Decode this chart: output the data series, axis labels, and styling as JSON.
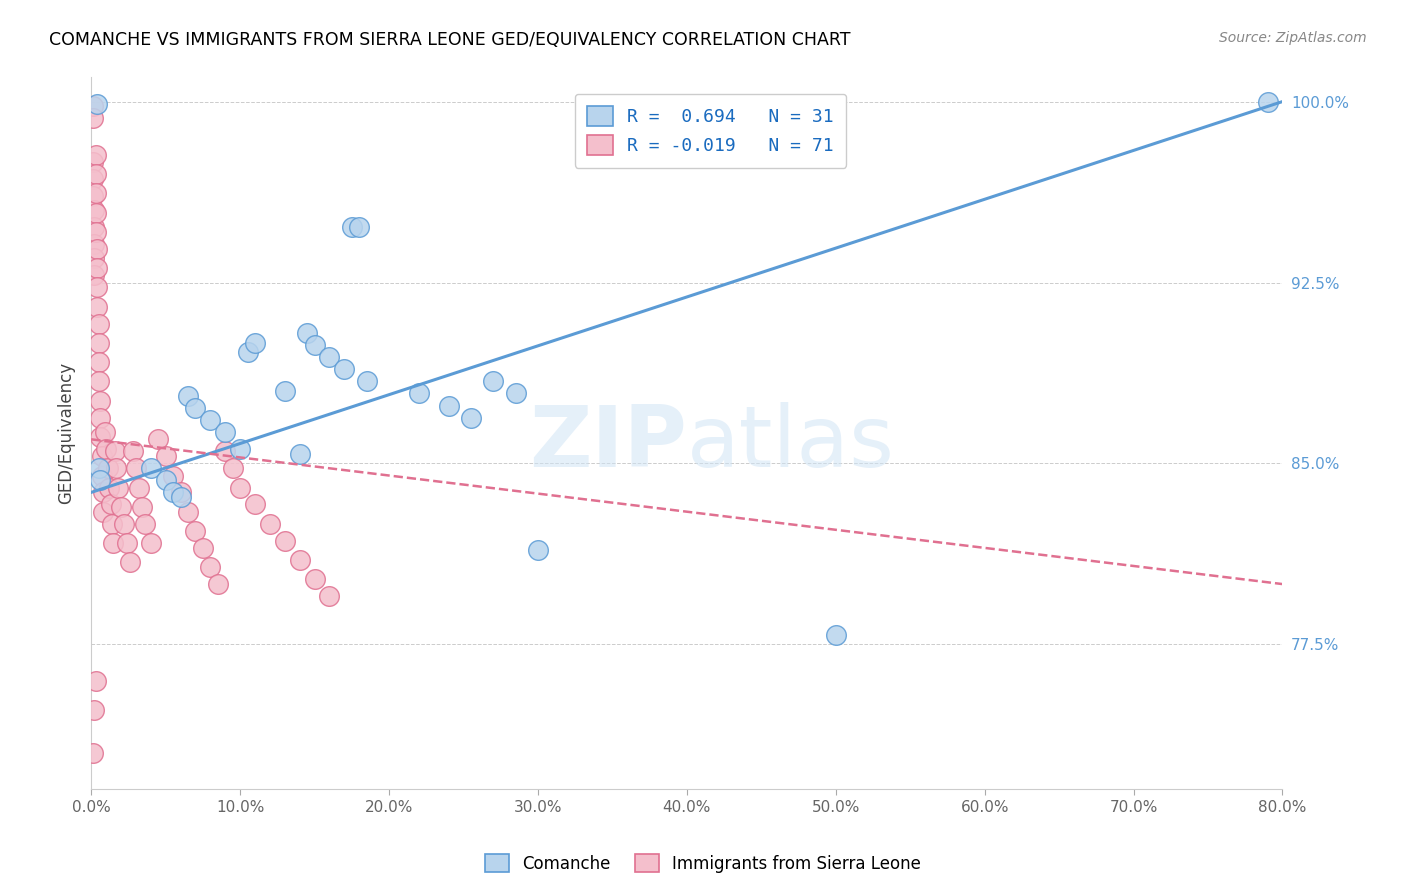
{
  "title": "COMANCHE VS IMMIGRANTS FROM SIERRA LEONE GED/EQUIVALENCY CORRELATION CHART",
  "source": "Source: ZipAtlas.com",
  "ylabel": "GED/Equivalency",
  "xlim": [
    0.0,
    0.8
  ],
  "ylim": [
    0.715,
    1.01
  ],
  "xtick_vals": [
    0.0,
    0.1,
    0.2,
    0.3,
    0.4,
    0.5,
    0.6,
    0.7,
    0.8
  ],
  "ytick_right_vals": [
    1.0,
    0.925,
    0.85,
    0.775
  ],
  "ytick_grid_vals": [
    1.0,
    0.925,
    0.85,
    0.775
  ],
  "legend_blue_r": "R =  0.694",
  "legend_blue_n": "N = 31",
  "legend_pink_r": "R = -0.019",
  "legend_pink_n": "N = 71",
  "legend_label_blue": "Comanche",
  "legend_label_pink": "Immigrants from Sierra Leone",
  "blue_fill": "#b8d4ed",
  "blue_edge": "#5b9bd5",
  "pink_fill": "#f4bfcc",
  "pink_edge": "#e07090",
  "blue_line": "#5b9bd5",
  "pink_line": "#e07090",
  "watermark": "ZIPatlas",
  "blue_x": [
    0.004,
    0.005,
    0.006,
    0.04,
    0.05,
    0.055,
    0.06,
    0.065,
    0.07,
    0.08,
    0.09,
    0.1,
    0.105,
    0.11,
    0.13,
    0.14,
    0.145,
    0.15,
    0.16,
    0.17,
    0.175,
    0.18,
    0.185,
    0.22,
    0.24,
    0.255,
    0.27,
    0.285,
    0.3,
    0.5,
    0.79
  ],
  "blue_y": [
    0.999,
    0.848,
    0.843,
    0.848,
    0.843,
    0.838,
    0.836,
    0.878,
    0.873,
    0.868,
    0.863,
    0.856,
    0.896,
    0.9,
    0.88,
    0.854,
    0.904,
    0.899,
    0.894,
    0.889,
    0.948,
    0.948,
    0.884,
    0.879,
    0.874,
    0.869,
    0.884,
    0.879,
    0.814,
    0.779,
    1.0
  ],
  "pink_x": [
    0.001,
    0.001,
    0.001,
    0.001,
    0.001,
    0.002,
    0.002,
    0.002,
    0.002,
    0.002,
    0.003,
    0.003,
    0.003,
    0.003,
    0.003,
    0.004,
    0.004,
    0.004,
    0.004,
    0.005,
    0.005,
    0.005,
    0.005,
    0.006,
    0.006,
    0.006,
    0.007,
    0.007,
    0.008,
    0.008,
    0.009,
    0.01,
    0.011,
    0.012,
    0.013,
    0.014,
    0.015,
    0.016,
    0.017,
    0.018,
    0.02,
    0.022,
    0.024,
    0.026,
    0.028,
    0.03,
    0.032,
    0.034,
    0.036,
    0.04,
    0.045,
    0.05,
    0.055,
    0.06,
    0.065,
    0.07,
    0.075,
    0.08,
    0.085,
    0.09,
    0.095,
    0.1,
    0.11,
    0.12,
    0.13,
    0.14,
    0.15,
    0.16,
    0.001,
    0.002,
    0.003
  ],
  "pink_y": [
    0.998,
    0.993,
    0.975,
    0.968,
    0.961,
    0.955,
    0.948,
    0.941,
    0.935,
    0.928,
    0.978,
    0.97,
    0.962,
    0.954,
    0.946,
    0.939,
    0.931,
    0.923,
    0.915,
    0.908,
    0.9,
    0.892,
    0.884,
    0.876,
    0.869,
    0.861,
    0.853,
    0.845,
    0.838,
    0.83,
    0.863,
    0.856,
    0.848,
    0.84,
    0.833,
    0.825,
    0.817,
    0.855,
    0.848,
    0.84,
    0.832,
    0.825,
    0.817,
    0.809,
    0.855,
    0.848,
    0.84,
    0.832,
    0.825,
    0.817,
    0.86,
    0.853,
    0.845,
    0.838,
    0.83,
    0.822,
    0.815,
    0.807,
    0.8,
    0.855,
    0.848,
    0.84,
    0.833,
    0.825,
    0.818,
    0.81,
    0.802,
    0.795,
    0.73,
    0.748,
    0.76
  ],
  "blue_line_x0": 0.0,
  "blue_line_x1": 0.8,
  "blue_line_y0": 0.838,
  "blue_line_y1": 1.0,
  "pink_line_x0": 0.0,
  "pink_line_x1": 0.8,
  "pink_line_y0": 0.86,
  "pink_line_y1": 0.8
}
